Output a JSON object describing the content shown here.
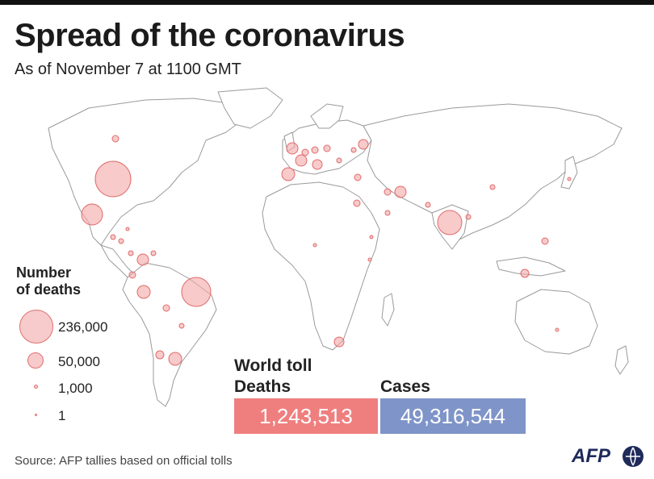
{
  "title": "Spread of the coronavirus",
  "subtitle": "As of November 7 at 1100 GMT",
  "legend": {
    "title_line1": "Number",
    "title_line2": "of deaths",
    "items": [
      "236,000",
      "50,000",
      "1,000",
      "1"
    ]
  },
  "world_toll": {
    "heading": "World toll",
    "deaths_label": "Deaths",
    "deaths_value": "1,243,513",
    "cases_label": "Cases",
    "cases_value": "49,316,544"
  },
  "colors": {
    "circle_fill": "#f3a7a7",
    "circle_stroke": "#e06a6a",
    "deaths_box": "#ef7f7f",
    "cases_box": "#7f94c8"
  },
  "source": "Source: AFP tallies based on official tolls",
  "logo": "AFP"
}
